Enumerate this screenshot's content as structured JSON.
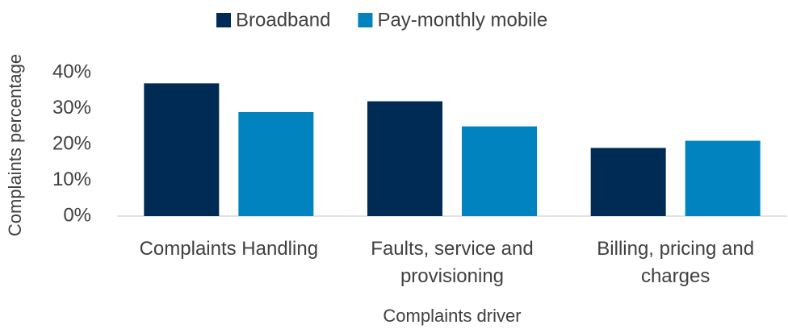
{
  "chart_data": {
    "type": "bar",
    "categories": [
      "Complaints Handling",
      "Faults, service and provisioning",
      "Billing, pricing and charges"
    ],
    "series": [
      {
        "name": "Broadband",
        "color": "#002b54",
        "values": [
          37,
          32,
          19
        ]
      },
      {
        "name": "Pay-monthly mobile",
        "color": "#0083bf",
        "values": [
          29,
          25,
          21
        ]
      }
    ],
    "xlabel": "Complaints driver",
    "ylabel": "Complaints percentage",
    "ylim": [
      0,
      40
    ],
    "yticks": [
      {
        "value": 0,
        "label": "0%"
      },
      {
        "value": 10,
        "label": "10%"
      },
      {
        "value": 20,
        "label": "20%"
      },
      {
        "value": 30,
        "label": "30%"
      },
      {
        "value": 40,
        "label": "40%"
      }
    ],
    "grid": false,
    "legend": "top"
  }
}
